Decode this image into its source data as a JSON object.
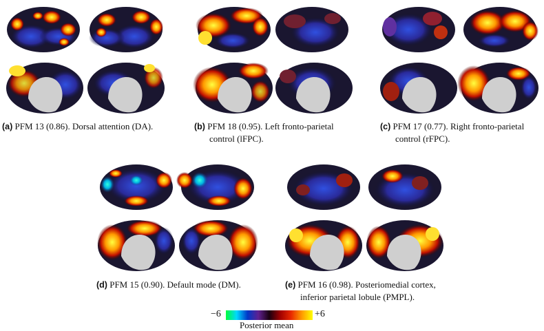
{
  "panels": [
    {
      "label": "(a)",
      "text": "PFM 13 (0.86). Dorsal attention (DA)."
    },
    {
      "label": "(b)",
      "text": "PFM 18 (0.95). Left fronto-parietal",
      "text2": "control (lFPC)."
    },
    {
      "label": "(c)",
      "text": "PFM 17 (0.77). Right fronto-parietal",
      "text2": "control (rFPC)."
    },
    {
      "label": "(d)",
      "text": "PFM 15 (0.90). Default mode (DM)."
    },
    {
      "label": "(e)",
      "text": "PFM 16 (0.98). Posteriomedial cortex,",
      "text2": "inferior parietal lobule (PMPL)."
    }
  ],
  "colorbar": {
    "min_label": "−6",
    "max_label": "+6",
    "title": "Posterior mean",
    "colors": [
      "#00ff3a",
      "#00d8ff",
      "#0038c8",
      "#602090",
      "#1a0010",
      "#a00000",
      "#e82800",
      "#ff9a00",
      "#ffff00"
    ]
  }
}
